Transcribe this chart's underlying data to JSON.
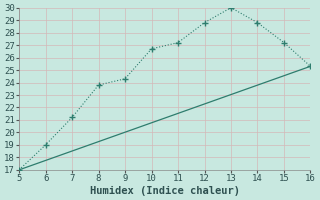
{
  "xlabel": "Humidex (Indice chaleur)",
  "bg_color": "#c8e8e0",
  "grid_color": "#b8d8d0",
  "line_color": "#2e7d6e",
  "marker_color": "#2e7d6e",
  "series1_x": [
    5,
    6,
    7,
    8,
    9,
    10,
    11,
    12,
    13,
    14,
    15,
    16
  ],
  "series1_y": [
    17.0,
    19.0,
    21.2,
    23.8,
    24.3,
    26.7,
    27.2,
    28.8,
    30.0,
    28.8,
    27.2,
    25.3
  ],
  "series2_x": [
    5,
    16
  ],
  "series2_y": [
    17.0,
    25.3
  ],
  "xlim": [
    5,
    16
  ],
  "ylim": [
    17,
    30
  ],
  "xticks": [
    5,
    6,
    7,
    8,
    9,
    10,
    11,
    12,
    13,
    14,
    15,
    16
  ],
  "yticks": [
    17,
    18,
    19,
    20,
    21,
    22,
    23,
    24,
    25,
    26,
    27,
    28,
    29,
    30
  ],
  "fontsize_ticks": 6.5,
  "fontsize_xlabel": 7.5
}
